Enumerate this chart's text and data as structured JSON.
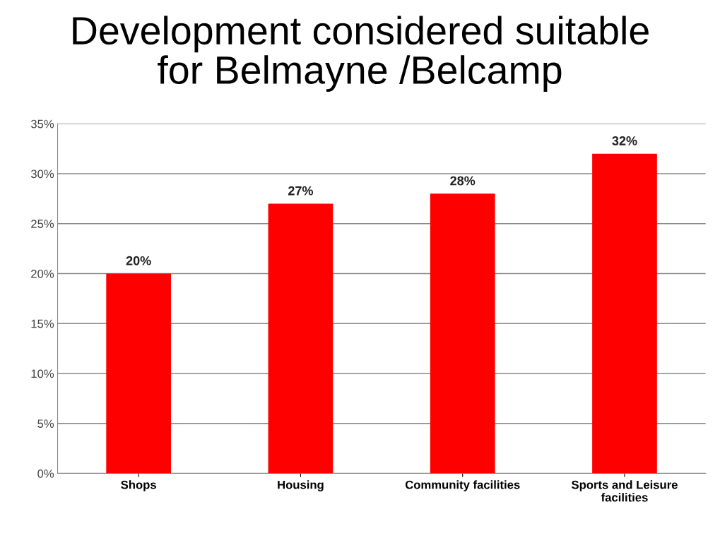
{
  "chart_data": {
    "type": "bar",
    "title": "Development considered suitable\nfor Belmayne /Belcamp",
    "categories": [
      "Shops",
      "Housing",
      "Community facilities",
      "Sports and Leisure\nfacilities"
    ],
    "values": [
      20,
      27,
      28,
      32
    ],
    "value_labels": [
      "20%",
      "27%",
      "28%",
      "32%"
    ],
    "color": "#ff0000",
    "ylim": [
      0,
      35
    ],
    "yticks": [
      {
        "value": 0,
        "label": "0%"
      },
      {
        "value": 5,
        "label": "5%"
      },
      {
        "value": 10,
        "label": "10%"
      },
      {
        "value": 15,
        "label": "15%"
      },
      {
        "value": 20,
        "label": "20%"
      },
      {
        "value": 25,
        "label": "25%"
      },
      {
        "value": 30,
        "label": "30%"
      },
      {
        "value": 35,
        "label": "35%"
      }
    ],
    "grid": "y",
    "legend": false
  }
}
